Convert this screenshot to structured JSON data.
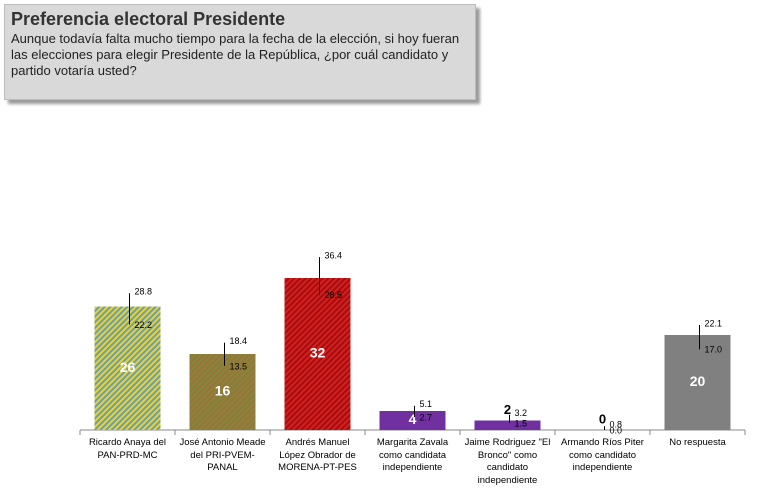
{
  "chart_data": {
    "type": "bar",
    "title": "Preferencia electoral Presidente",
    "subtitle": "Aunque todavía falta mucho tiempo para la fecha de la elección, si hoy fueran las elecciones para elegir Presidente de la República, ¿por cuál candidato y partido votaría usted?",
    "categories": [
      "Ricardo Anaya del PAN-PRD-MC",
      "José Antonio Meade del PRI-PVEM-PANAL",
      "Andrés Manuel López Obrador de MORENA-PT-PES",
      "Margarita Zavala como candidata independiente",
      "Jaime Rodriguez \"El Bronco\" como candidato independiente",
      "Armando Ríos Piter como candidato independiente",
      "No respuesta"
    ],
    "values": [
      26,
      16,
      32,
      4,
      2,
      0,
      20
    ],
    "colors": [
      "#6f9fa0",
      "#a0703a",
      "#d81e1e",
      "#7030a0",
      "#7030a0",
      "#7030a0",
      "#808080"
    ],
    "hatch": [
      "#e6d23a",
      "#7e8a3a",
      "#a01010",
      null,
      null,
      null,
      null
    ],
    "range_high": {
      "values": [
        28.8,
        18.4,
        36.4,
        5.1,
        3.2,
        0.8,
        22.1
      ]
    },
    "range_low": {
      "values": [
        22.2,
        13.5,
        28.5,
        2.7,
        1.5,
        0,
        17
      ],
      "value_labels": [
        "22.2",
        "13.5",
        "28.5",
        "2.7",
        "1.5",
        "0.0",
        "17.0"
      ]
    }
  }
}
